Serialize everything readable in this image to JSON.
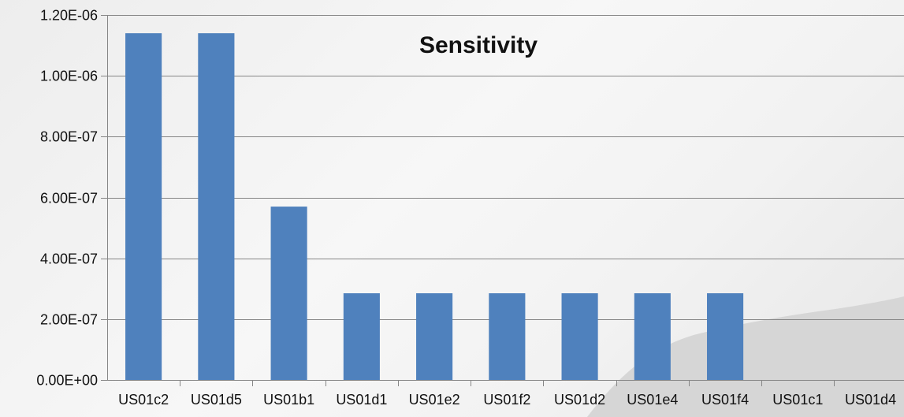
{
  "chart_data": {
    "type": "bar",
    "title": "Sensitivity",
    "xlabel": "",
    "ylabel": "",
    "categories": [
      "US01c2",
      "US01d5",
      "US01b1",
      "US01d1",
      "US01e2",
      "US01f2",
      "US01d2",
      "US01e4",
      "US01f4",
      "US01c1",
      "US01d4"
    ],
    "values": [
      1.14e-06,
      1.14e-06,
      5.7e-07,
      2.85e-07,
      2.85e-07,
      2.85e-07,
      2.85e-07,
      2.85e-07,
      2.85e-07,
      0,
      0
    ],
    "ylim": [
      0,
      1.2e-06
    ],
    "yticks": [
      0,
      2e-07,
      4e-07,
      6e-07,
      8e-07,
      1e-06,
      1.2e-06
    ],
    "ytick_labels": [
      "0.00E+00",
      "2.00E-07",
      "4.00E-07",
      "6.00E-07",
      "8.00E-07",
      "1.00E-06",
      "1.20E-06"
    ],
    "grid": true,
    "legend": "none",
    "colors": {
      "bar": "#4F81BD",
      "grid": "#868686",
      "axis": "#868686",
      "text": "#111111",
      "background_shape": "#d6d6d6"
    }
  }
}
